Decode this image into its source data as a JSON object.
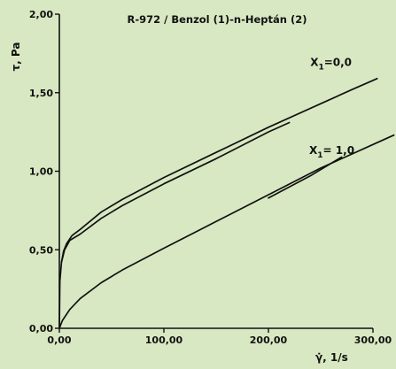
{
  "chart_data": {
    "type": "line",
    "title": "R-972 / Benzol (1)-n-Heptán (2)",
    "ylabel": "τ, Pa",
    "xlabel": "γ̇, 1/s",
    "xlim": [
      0,
      300
    ],
    "ylim": [
      0,
      2.0
    ],
    "xticks": [
      0,
      100,
      200,
      300
    ],
    "yticks": [
      0,
      0.5,
      1.0,
      1.5,
      2.0
    ],
    "xtick_labels": [
      "0,00",
      "100,00",
      "200,00",
      "300,00"
    ],
    "ytick_labels": [
      "0,00",
      "0,50",
      "1,00",
      "1,50",
      "2,00"
    ],
    "grid": false,
    "series": [
      {
        "name": "X1=0,0",
        "branch": "upper",
        "x": [
          0,
          0.5,
          2,
          4,
          7,
          12,
          20,
          40,
          60,
          100,
          150,
          200,
          250,
          280,
          304
        ],
        "y": [
          0,
          0.3,
          0.42,
          0.49,
          0.54,
          0.59,
          0.63,
          0.74,
          0.82,
          0.96,
          1.12,
          1.28,
          1.43,
          1.52,
          1.59
        ]
      },
      {
        "name": "X1=0,0",
        "branch": "lower",
        "x": [
          2,
          5,
          10,
          20,
          40,
          60,
          100,
          150,
          200,
          220
        ],
        "y": [
          0.42,
          0.5,
          0.56,
          0.6,
          0.7,
          0.78,
          0.92,
          1.08,
          1.25,
          1.31
        ]
      },
      {
        "name": "X1=1,0",
        "branch": "upper",
        "x": [
          0,
          3,
          10,
          20,
          40,
          60,
          100,
          150,
          200,
          250,
          280,
          300,
          320
        ],
        "y": [
          0,
          0.05,
          0.12,
          0.19,
          0.29,
          0.37,
          0.51,
          0.68,
          0.85,
          1.02,
          1.11,
          1.17,
          1.23
        ]
      },
      {
        "name": "X1=1,0",
        "branch": "lower",
        "x": [
          200,
          240,
          270
        ],
        "y": [
          0.83,
          0.97,
          1.09
        ]
      }
    ],
    "annotations": [
      {
        "text": "X",
        "sub": "1",
        "rest": "=0,0",
        "x": 240,
        "y": 1.67
      },
      {
        "text": "X",
        "sub": "1",
        "rest": "= 1,0",
        "x": 239,
        "y": 1.11
      }
    ]
  }
}
